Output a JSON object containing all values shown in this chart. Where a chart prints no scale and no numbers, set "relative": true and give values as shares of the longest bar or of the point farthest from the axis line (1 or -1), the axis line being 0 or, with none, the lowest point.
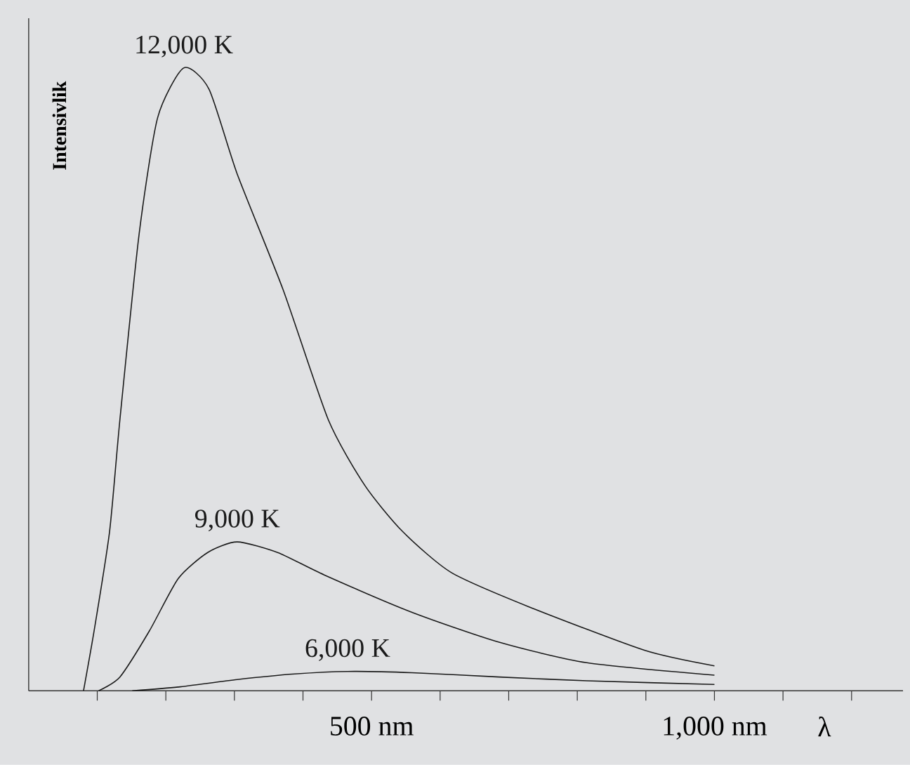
{
  "chart_data": {
    "type": "line",
    "relative": true,
    "xlabel": "λ",
    "ylabel": "Intensivlik",
    "xlim": [
      0,
      1275
    ],
    "xticks": [
      {
        "value": 100,
        "label": null
      },
      {
        "value": 200,
        "label": null
      },
      {
        "value": 300,
        "label": null
      },
      {
        "value": 400,
        "label": null
      },
      {
        "value": 500,
        "label": "500 nm"
      },
      {
        "value": 600,
        "label": null
      },
      {
        "value": 700,
        "label": null
      },
      {
        "value": 800,
        "label": null
      },
      {
        "value": 900,
        "label": null
      },
      {
        "value": 1000,
        "label": "1,000 nm"
      },
      {
        "value": 1100,
        "label": null
      },
      {
        "value": 1200,
        "label": null
      }
    ],
    "tick_labels": "x",
    "grid": false,
    "legend": false,
    "marker": "none",
    "line_style": "solid",
    "series": [
      {
        "name": "12,000 K",
        "color": "#1a1a1a",
        "x": [
          80,
          96,
          118,
          133,
          161,
          188,
          226,
          263,
          304,
          371,
          437,
          490,
          545,
          616,
          729,
          898,
          1000
        ],
        "values": [
          0,
          0.1,
          0.256,
          0.435,
          0.733,
          0.92,
          1.0,
          0.966,
          0.83,
          0.644,
          0.435,
          0.33,
          0.256,
          0.19,
          0.135,
          0.065,
          0.04
        ]
      },
      {
        "name": "9,000 K",
        "color": "#1a1a1a",
        "x": [
          102,
          133,
          176,
          218,
          261,
          304,
          363,
          431,
          559,
          686,
          814,
          1000
        ],
        "values": [
          0,
          0.022,
          0.096,
          0.18,
          0.222,
          0.239,
          0.222,
          0.186,
          0.126,
          0.078,
          0.045,
          0.025
        ]
      },
      {
        "name": "6,000 K",
        "color": "#1a1a1a",
        "x": [
          151,
          218,
          304,
          388,
          465,
          559,
          686,
          814,
          1000
        ],
        "values": [
          0,
          0.006,
          0.018,
          0.027,
          0.031,
          0.029,
          0.022,
          0.016,
          0.01
        ]
      }
    ]
  }
}
